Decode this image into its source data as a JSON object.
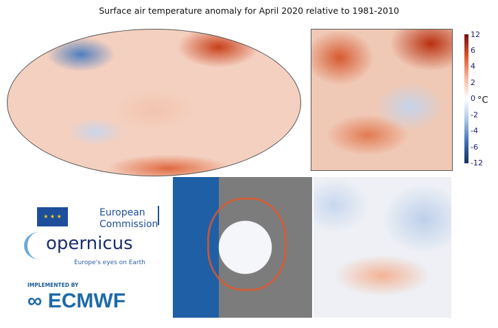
{
  "title": "Surface air temperature anomaly for April 2020 relative to 1981-2010",
  "colorbar": {
    "unit": "°C",
    "ticks": [
      "12",
      "6",
      "4",
      "2",
      "0",
      "-2",
      "-4",
      "-6",
      "-12"
    ]
  },
  "logos": {
    "ec": {
      "line1": "European",
      "line2": "Commission"
    },
    "copernicus": {
      "name": "opernicus",
      "tagline": "Europe's eyes on Earth"
    },
    "ecmwf": {
      "implemented": "IMPLEMENTED BY",
      "name": "ECMWF"
    }
  }
}
